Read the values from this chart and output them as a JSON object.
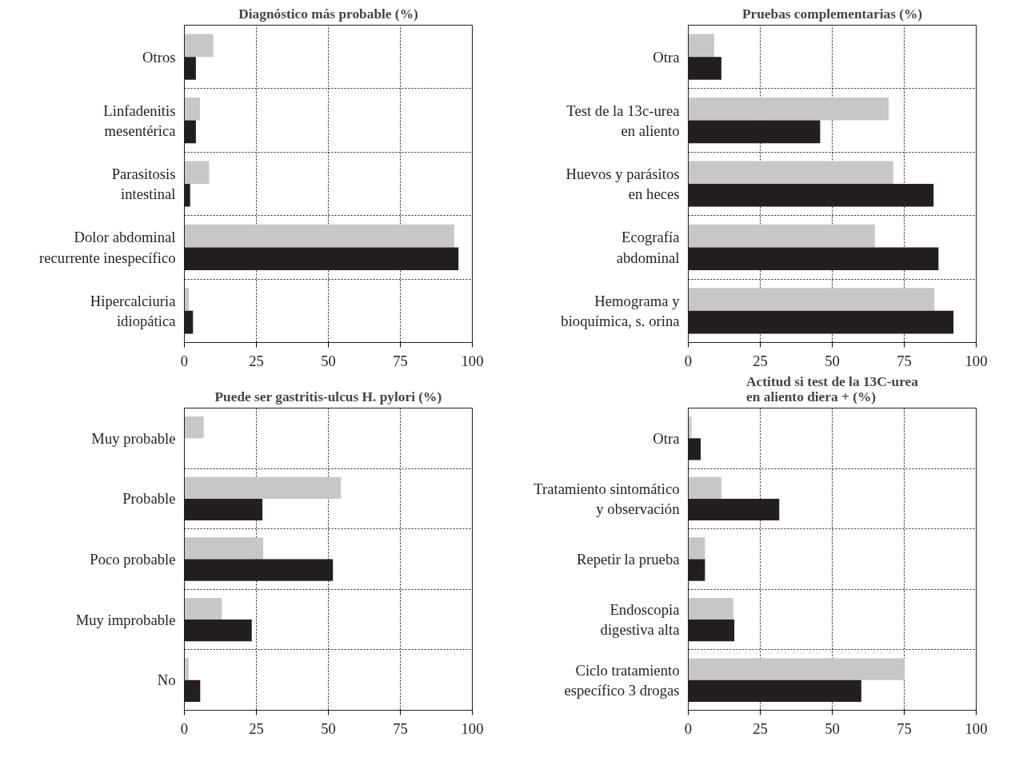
{
  "chart_data": [
    {
      "type": "bar",
      "orientation": "horizontal",
      "title": "Diagnóstico más probable (%)",
      "categories": [
        "Otros",
        "Linfadenitis\nmesentérica",
        "Parasitosis\nintestinal",
        "Dolor abdominal\nrecurrente inespecífico",
        "Hipercalciuria\nidiopática"
      ],
      "series": [
        {
          "color": "#c6c7c9",
          "values": [
            10,
            5.4,
            8.6,
            93.7,
            1.6
          ]
        },
        {
          "color": "#231f20",
          "values": [
            4,
            4,
            2,
            95.2,
            3
          ]
        }
      ],
      "xlim": [
        0,
        100
      ],
      "xticks": [
        0,
        25,
        50,
        75,
        100
      ],
      "grid": true
    },
    {
      "type": "bar",
      "orientation": "horizontal",
      "title": "Pruebas complementarias (%)",
      "categories": [
        "Otra",
        "Test de la 13c-urea\nen aliento",
        "Huevos y parásitos\nen heces",
        "Ecografía\nabdominal",
        "Hemograma y\nbioquímica, s. orina"
      ],
      "series": [
        {
          "color": "#c6c7c9",
          "values": [
            9,
            69.6,
            71.2,
            64.8,
            85.5
          ]
        },
        {
          "color": "#231f20",
          "values": [
            11.5,
            45.8,
            85.2,
            86.9,
            92.1
          ]
        }
      ],
      "xlim": [
        0,
        100
      ],
      "xticks": [
        0,
        25,
        50,
        75,
        100
      ],
      "grid": true
    },
    {
      "type": "bar",
      "orientation": "horizontal",
      "title": "Puede ser gastritis-ulcus H. pylori (%)",
      "categories": [
        "Muy probable",
        "Probable",
        "Poco probable",
        "Muy improbable",
        "No"
      ],
      "series": [
        {
          "color": "#c6c7c9",
          "values": [
            6.7,
            54.4,
            27.4,
            13,
            1.5
          ]
        },
        {
          "color": "#231f20",
          "values": [
            0,
            27.1,
            51.6,
            23.4,
            5.5
          ]
        }
      ],
      "xlim": [
        0,
        100
      ],
      "xticks": [
        0,
        25,
        50,
        75,
        100
      ],
      "grid": true
    },
    {
      "type": "bar",
      "orientation": "horizontal",
      "title": "Actitud si test de la 13C-urea\nen aliento diera + (%)",
      "categories": [
        "Otra",
        "Tratamiento sintomático\ny observación",
        "Repetir la prueba",
        "Endoscopia\ndigestiva alta",
        "Ciclo tratamiento\nespecífico 3 drogas"
      ],
      "series": [
        {
          "color": "#c6c7c9",
          "values": [
            1.1,
            11.5,
            5.8,
            15.6,
            75.1
          ]
        },
        {
          "color": "#231f20",
          "values": [
            4.3,
            31.6,
            5.8,
            16,
            60.1
          ]
        }
      ],
      "xlim": [
        0,
        100
      ],
      "xticks": [
        0,
        25,
        50,
        75,
        100
      ],
      "grid": true
    }
  ]
}
